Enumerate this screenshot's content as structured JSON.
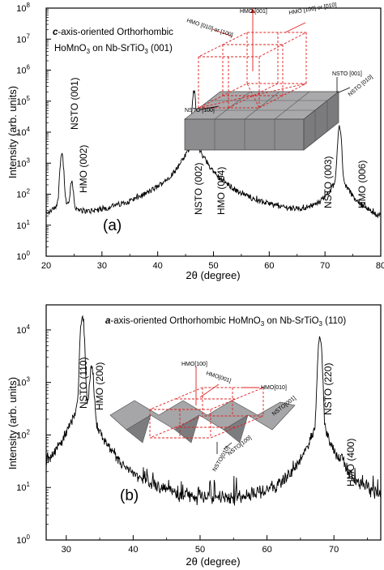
{
  "chart_data": [
    {
      "type": "line",
      "panel": "(a)",
      "title": {
        "line1_italic": "c",
        "line1_rest": "-axis-oriented Orthorhombic",
        "line2_a": "HoMnO",
        "line2_sub": "3",
        "line2_b": " on Nb-SrTiO",
        "line2_sub2": "3",
        "line2_c": " (001)"
      },
      "xlabel": "2θ (degree)",
      "ylabel": "Intensity (arb. units)",
      "xlim": [
        20,
        80
      ],
      "ylim": [
        1,
        100000000
      ],
      "yscale": "log",
      "xticks": [
        "20",
        "30",
        "40",
        "50",
        "60",
        "70",
        "80"
      ],
      "yticks": [
        {
          "base": "10",
          "exp": "0"
        },
        {
          "base": "10",
          "exp": "1"
        },
        {
          "base": "10",
          "exp": "2"
        },
        {
          "base": "10",
          "exp": "3"
        },
        {
          "base": "10",
          "exp": "4"
        },
        {
          "base": "10",
          "exp": "5"
        },
        {
          "base": "10",
          "exp": "6"
        },
        {
          "base": "10",
          "exp": "7"
        },
        {
          "base": "10",
          "exp": "8"
        }
      ],
      "peaks": [
        {
          "label": "NSTO (001)",
          "x": 22.8,
          "y": 2000
        },
        {
          "label": "HMO (002)",
          "x": 24.6,
          "y": 200
        },
        {
          "label": "NSTO (002)",
          "x": 46.5,
          "y": 200000
        },
        {
          "label": "HMO (004)",
          "x": 48.7,
          "y": 60
        },
        {
          "label": "NSTO (003)",
          "x": 72.6,
          "y": 15000
        },
        {
          "label": "HMO (006)",
          "x": 77.2,
          "y": 8
        }
      ],
      "inset": {
        "labels": [
          "HMO [001]",
          "HMO [010] or [100]",
          "HMO [100] or [010]",
          "NSTO [001]",
          "NSTO [010]",
          "NSTO [100]"
        ]
      }
    },
    {
      "type": "line",
      "panel": "(b)",
      "title": {
        "line1_italic": "a",
        "line1_rest": "-axis-oriented Orthorhombic HoMnO",
        "line1_sub": "3",
        "line1_b": " on Nb-SrTiO",
        "line1_sub2": "3",
        "line1_c": " (110)"
      },
      "xlabel": "2θ (degree)",
      "ylabel": "Intensity (arb. units)",
      "xlim": [
        27,
        77
      ],
      "ylim": [
        1,
        30000
      ],
      "yscale": "log",
      "xticks": [
        "30",
        "40",
        "50",
        "60",
        "70"
      ],
      "yticks": [
        {
          "base": "10",
          "exp": "0"
        },
        {
          "base": "10",
          "exp": "1"
        },
        {
          "base": "10",
          "exp": "2"
        },
        {
          "base": "10",
          "exp": "3"
        },
        {
          "base": "10",
          "exp": "4"
        }
      ],
      "peaks": [
        {
          "label": "NSTO (110)",
          "x": 32.4,
          "y": 20000
        },
        {
          "label": "HMO (200)",
          "x": 33.8,
          "y": 2000
        },
        {
          "label": "NSTO (220)",
          "x": 67.9,
          "y": 8000
        },
        {
          "label": "HMO (400)",
          "x": 71.2,
          "y": 15
        }
      ],
      "inset": {
        "labels": [
          "HMO[100]",
          "HMO[001]",
          "HMO[010]",
          "NSTO[001]",
          "NSTO[010]",
          "NSTO[100]"
        ]
      }
    }
  ]
}
